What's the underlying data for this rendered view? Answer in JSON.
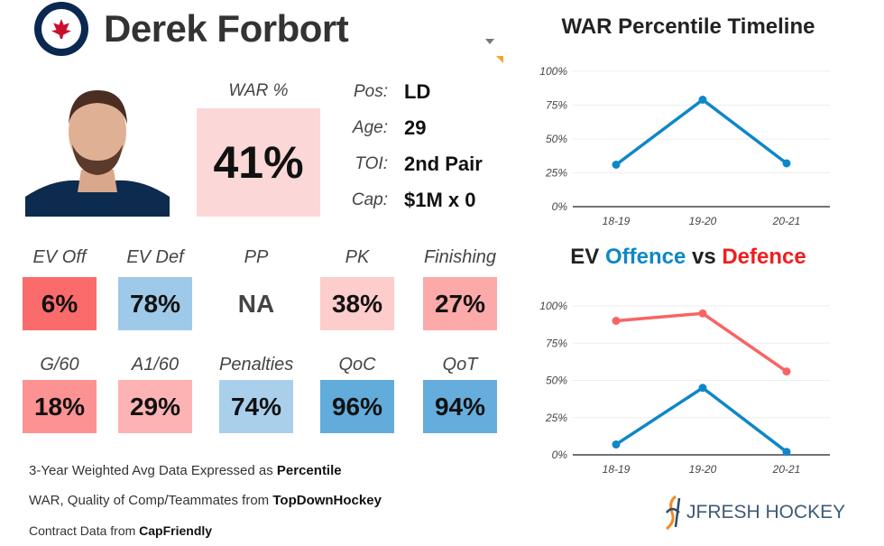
{
  "player": {
    "name": "Derek Forbort",
    "team_logo": "winnipeg-jets-logo"
  },
  "war": {
    "label": "WAR %",
    "value": "41%",
    "color": "#fbd7d7"
  },
  "info": [
    {
      "label": "Pos:",
      "value": "LD"
    },
    {
      "label": "Age:",
      "value": "29"
    },
    {
      "label": "TOI:",
      "value": "2nd Pair"
    },
    {
      "label": "Cap:",
      "value": "$1M x 0"
    }
  ],
  "tiles": [
    {
      "label": "EV Off",
      "value": "6%",
      "color": "#fb6b6b"
    },
    {
      "label": "EV Def",
      "value": "78%",
      "color": "#9fc9e8"
    },
    {
      "label": "PP",
      "value": "NA",
      "color": "#ffffff"
    },
    {
      "label": "PK",
      "value": "38%",
      "color": "#fdcccc"
    },
    {
      "label": "Finishing",
      "value": "27%",
      "color": "#fca9a9"
    },
    {
      "label": "G/60",
      "value": "18%",
      "color": "#fc9292"
    },
    {
      "label": "A1/60",
      "value": "29%",
      "color": "#fdb3b3"
    },
    {
      "label": "Penalties",
      "value": "74%",
      "color": "#a9cfeb"
    },
    {
      "label": "QoC",
      "value": "96%",
      "color": "#62acdc"
    },
    {
      "label": "QoT",
      "value": "94%",
      "color": "#65addd"
    }
  ],
  "footer": {
    "line1_pre": "3-Year Weighted Avg Data Expressed as ",
    "line1_bold": "Percentile",
    "line2_pre": "WAR, Quality of Comp/Teammates from ",
    "line2_bold": "TopDownHockey",
    "line3_pre": "Contract Data from ",
    "line3_bold": "CapFriendly"
  },
  "brand": "JFRESH HOCKEY",
  "chart_data": [
    {
      "type": "line",
      "title": "WAR Percentile Timeline",
      "categories": [
        "18-19",
        "19-20",
        "20-21"
      ],
      "ylim": [
        0,
        100
      ],
      "yticks": [
        "0%",
        "25%",
        "50%",
        "75%",
        "100%"
      ],
      "series": [
        {
          "values": [
            31,
            79,
            32
          ],
          "color": "#0e87c8"
        }
      ]
    },
    {
      "type": "line",
      "title_parts": [
        {
          "text": "EV ",
          "color": "#222222"
        },
        {
          "text": "Offence",
          "color": "#0e87c8"
        },
        {
          "text": " vs ",
          "color": "#222222"
        },
        {
          "text": "Defence",
          "color": "#f01d1d"
        }
      ],
      "categories": [
        "18-19",
        "19-20",
        "20-21"
      ],
      "ylim": [
        0,
        100
      ],
      "yticks": [
        "0%",
        "25%",
        "50%",
        "75%",
        "100%"
      ],
      "series": [
        {
          "name": "Offence",
          "values": [
            7,
            45,
            2
          ],
          "color": "#0e87c8"
        },
        {
          "name": "Defence",
          "values": [
            90,
            95,
            56
          ],
          "color": "#f86464"
        }
      ]
    }
  ]
}
